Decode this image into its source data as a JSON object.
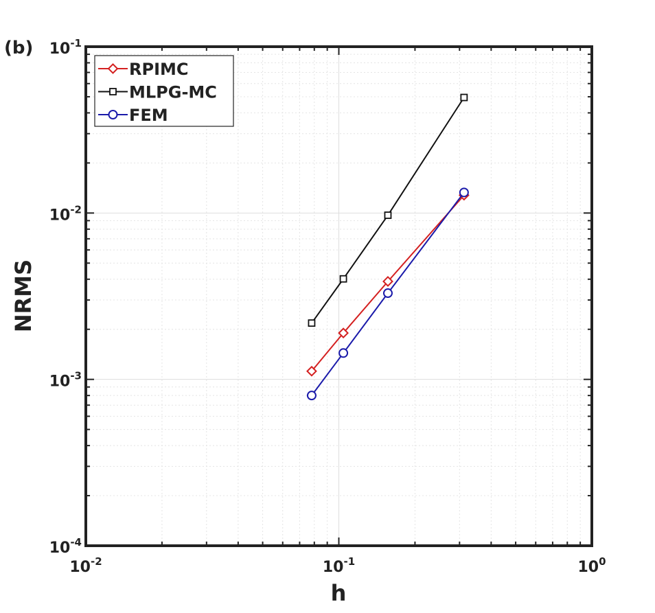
{
  "panel_label": "(b)",
  "chart_data": {
    "type": "line",
    "xscale": "log",
    "yscale": "log",
    "xlabel": "h",
    "ylabel": "NRMS",
    "xlim": [
      0.01,
      1
    ],
    "ylim": [
      0.0001,
      0.1
    ],
    "grid": true,
    "legend_position": "top-left",
    "x_ticks": [
      {
        "value": 0.01,
        "base": "10",
        "exp": "-2"
      },
      {
        "value": 0.1,
        "base": "10",
        "exp": "-1"
      },
      {
        "value": 1,
        "base": "10",
        "exp": "0"
      }
    ],
    "y_ticks": [
      {
        "value": 0.1,
        "base": "10",
        "exp": "-1"
      },
      {
        "value": 0.01,
        "base": "10",
        "exp": "-2"
      },
      {
        "value": 0.001,
        "base": "10",
        "exp": "-3"
      },
      {
        "value": 0.0001,
        "base": "10",
        "exp": "-4"
      }
    ],
    "series": [
      {
        "name": "RPIMC",
        "color": "#d42020",
        "marker": "diamond",
        "x": [
          0.0781,
          0.1042,
          0.1563,
          0.3125
        ],
        "y": [
          0.00112,
          0.0019,
          0.00388,
          0.0128
        ]
      },
      {
        "name": "MLPG-MC",
        "color": "#111111",
        "marker": "square",
        "x": [
          0.0781,
          0.1042,
          0.1563,
          0.3125
        ],
        "y": [
          0.00218,
          0.00402,
          0.0097,
          0.0495
        ]
      },
      {
        "name": "FEM",
        "color": "#1a1aaa",
        "marker": "circle",
        "x": [
          0.0781,
          0.1042,
          0.1563,
          0.3125
        ],
        "y": [
          0.0008,
          0.00144,
          0.0033,
          0.0133
        ]
      }
    ]
  }
}
